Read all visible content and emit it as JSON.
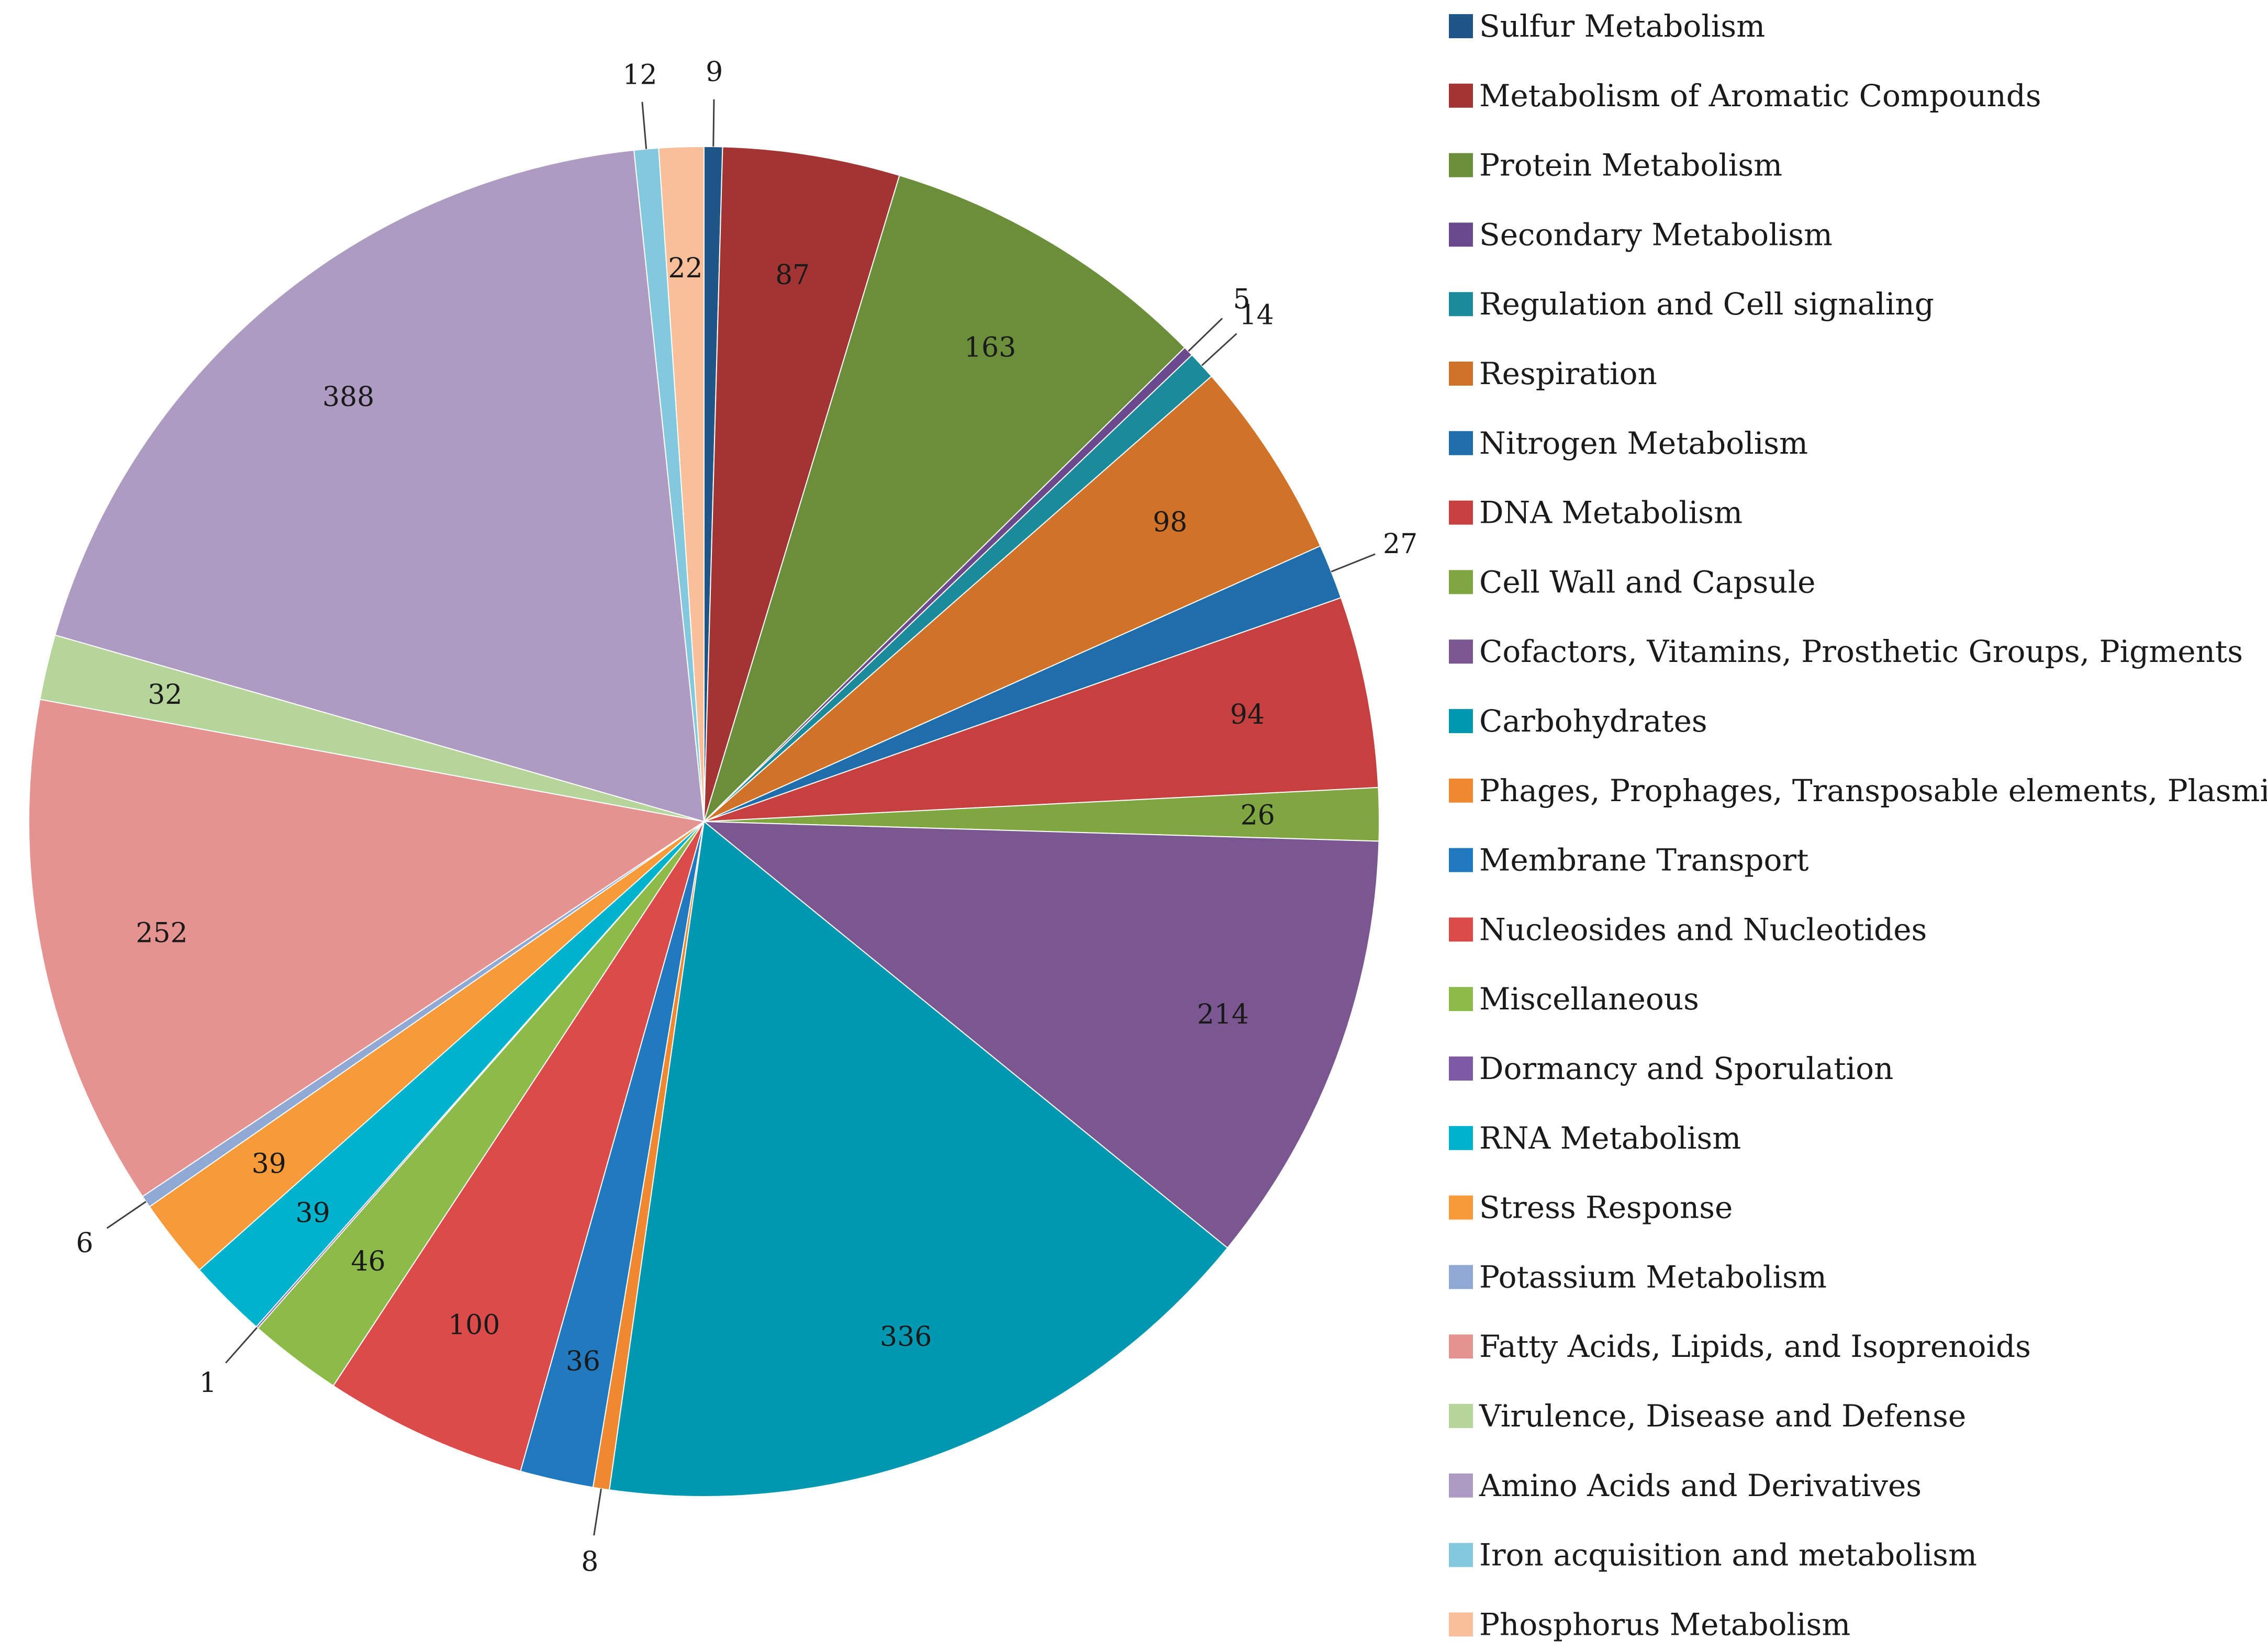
{
  "chart_data": {
    "type": "pie",
    "title": "",
    "start_angle_deg": 0,
    "direction": "clockwise",
    "legend_position": "right",
    "slices": [
      {
        "label": "Sulfur Metabolism",
        "value": 9,
        "color": "#1F5587"
      },
      {
        "label": "Metabolism of Aromatic Compounds",
        "value": 87,
        "color": "#A23533"
      },
      {
        "label": "Protein Metabolism",
        "value": 163,
        "color": "#6B8E3A"
      },
      {
        "label": "Secondary Metabolism",
        "value": 5,
        "color": "#6A4A8C"
      },
      {
        "label": "Regulation and Cell signaling",
        "value": 14,
        "color": "#1B8A9B"
      },
      {
        "label": "Respiration",
        "value": 98,
        "color": "#D07228"
      },
      {
        "label": "Nitrogen Metabolism",
        "value": 27,
        "color": "#1F6EAB"
      },
      {
        "label": "DNA Metabolism",
        "value": 94,
        "color": "#C5403E"
      },
      {
        "label": "Cell Wall and Capsule",
        "value": 26,
        "color": "#7FA640"
      },
      {
        "label": "Cofactors, Vitamins, Prosthetic Groups, Pigments",
        "value": 214,
        "color": "#7A5791"
      },
      {
        "label": "Carbohydrates",
        "value": 336,
        "color": "#0098B0"
      },
      {
        "label": "Phages, Prophages, Transposable elements, Plasmids",
        "value": 8,
        "color": "#F0882F"
      },
      {
        "label": "Membrane Transport",
        "value": 36,
        "color": "#2179C0"
      },
      {
        "label": "Nucleosides and Nucleotides",
        "value": 100,
        "color": "#DB4B4A"
      },
      {
        "label": "Miscellaneous",
        "value": 46,
        "color": "#8DBB4A"
      },
      {
        "label": "Dormancy and Sporulation",
        "value": 1,
        "color": "#7E59A6"
      },
      {
        "label": "RNA Metabolism",
        "value": 39,
        "color": "#00B3CC"
      },
      {
        "label": "Stress Response",
        "value": 39,
        "color": "#F79A3A"
      },
      {
        "label": "Potassium Metabolism",
        "value": 6,
        "color": "#8FA8D4"
      },
      {
        "label": "Fatty Acids, Lipids, and Isoprenoids",
        "value": 252,
        "color": "#E59391"
      },
      {
        "label": "Virulence, Disease and Defense",
        "value": 32,
        "color": "#B5D59A"
      },
      {
        "label": "Amino Acids and Derivatives",
        "value": 388,
        "color": "#AD9BC2"
      },
      {
        "label": "Iron acquisition and metabolism",
        "value": 12,
        "color": "#83C8DC"
      },
      {
        "label": "Phosphorus Metabolism",
        "value": 22,
        "color": "#F9BF9B"
      }
    ]
  }
}
